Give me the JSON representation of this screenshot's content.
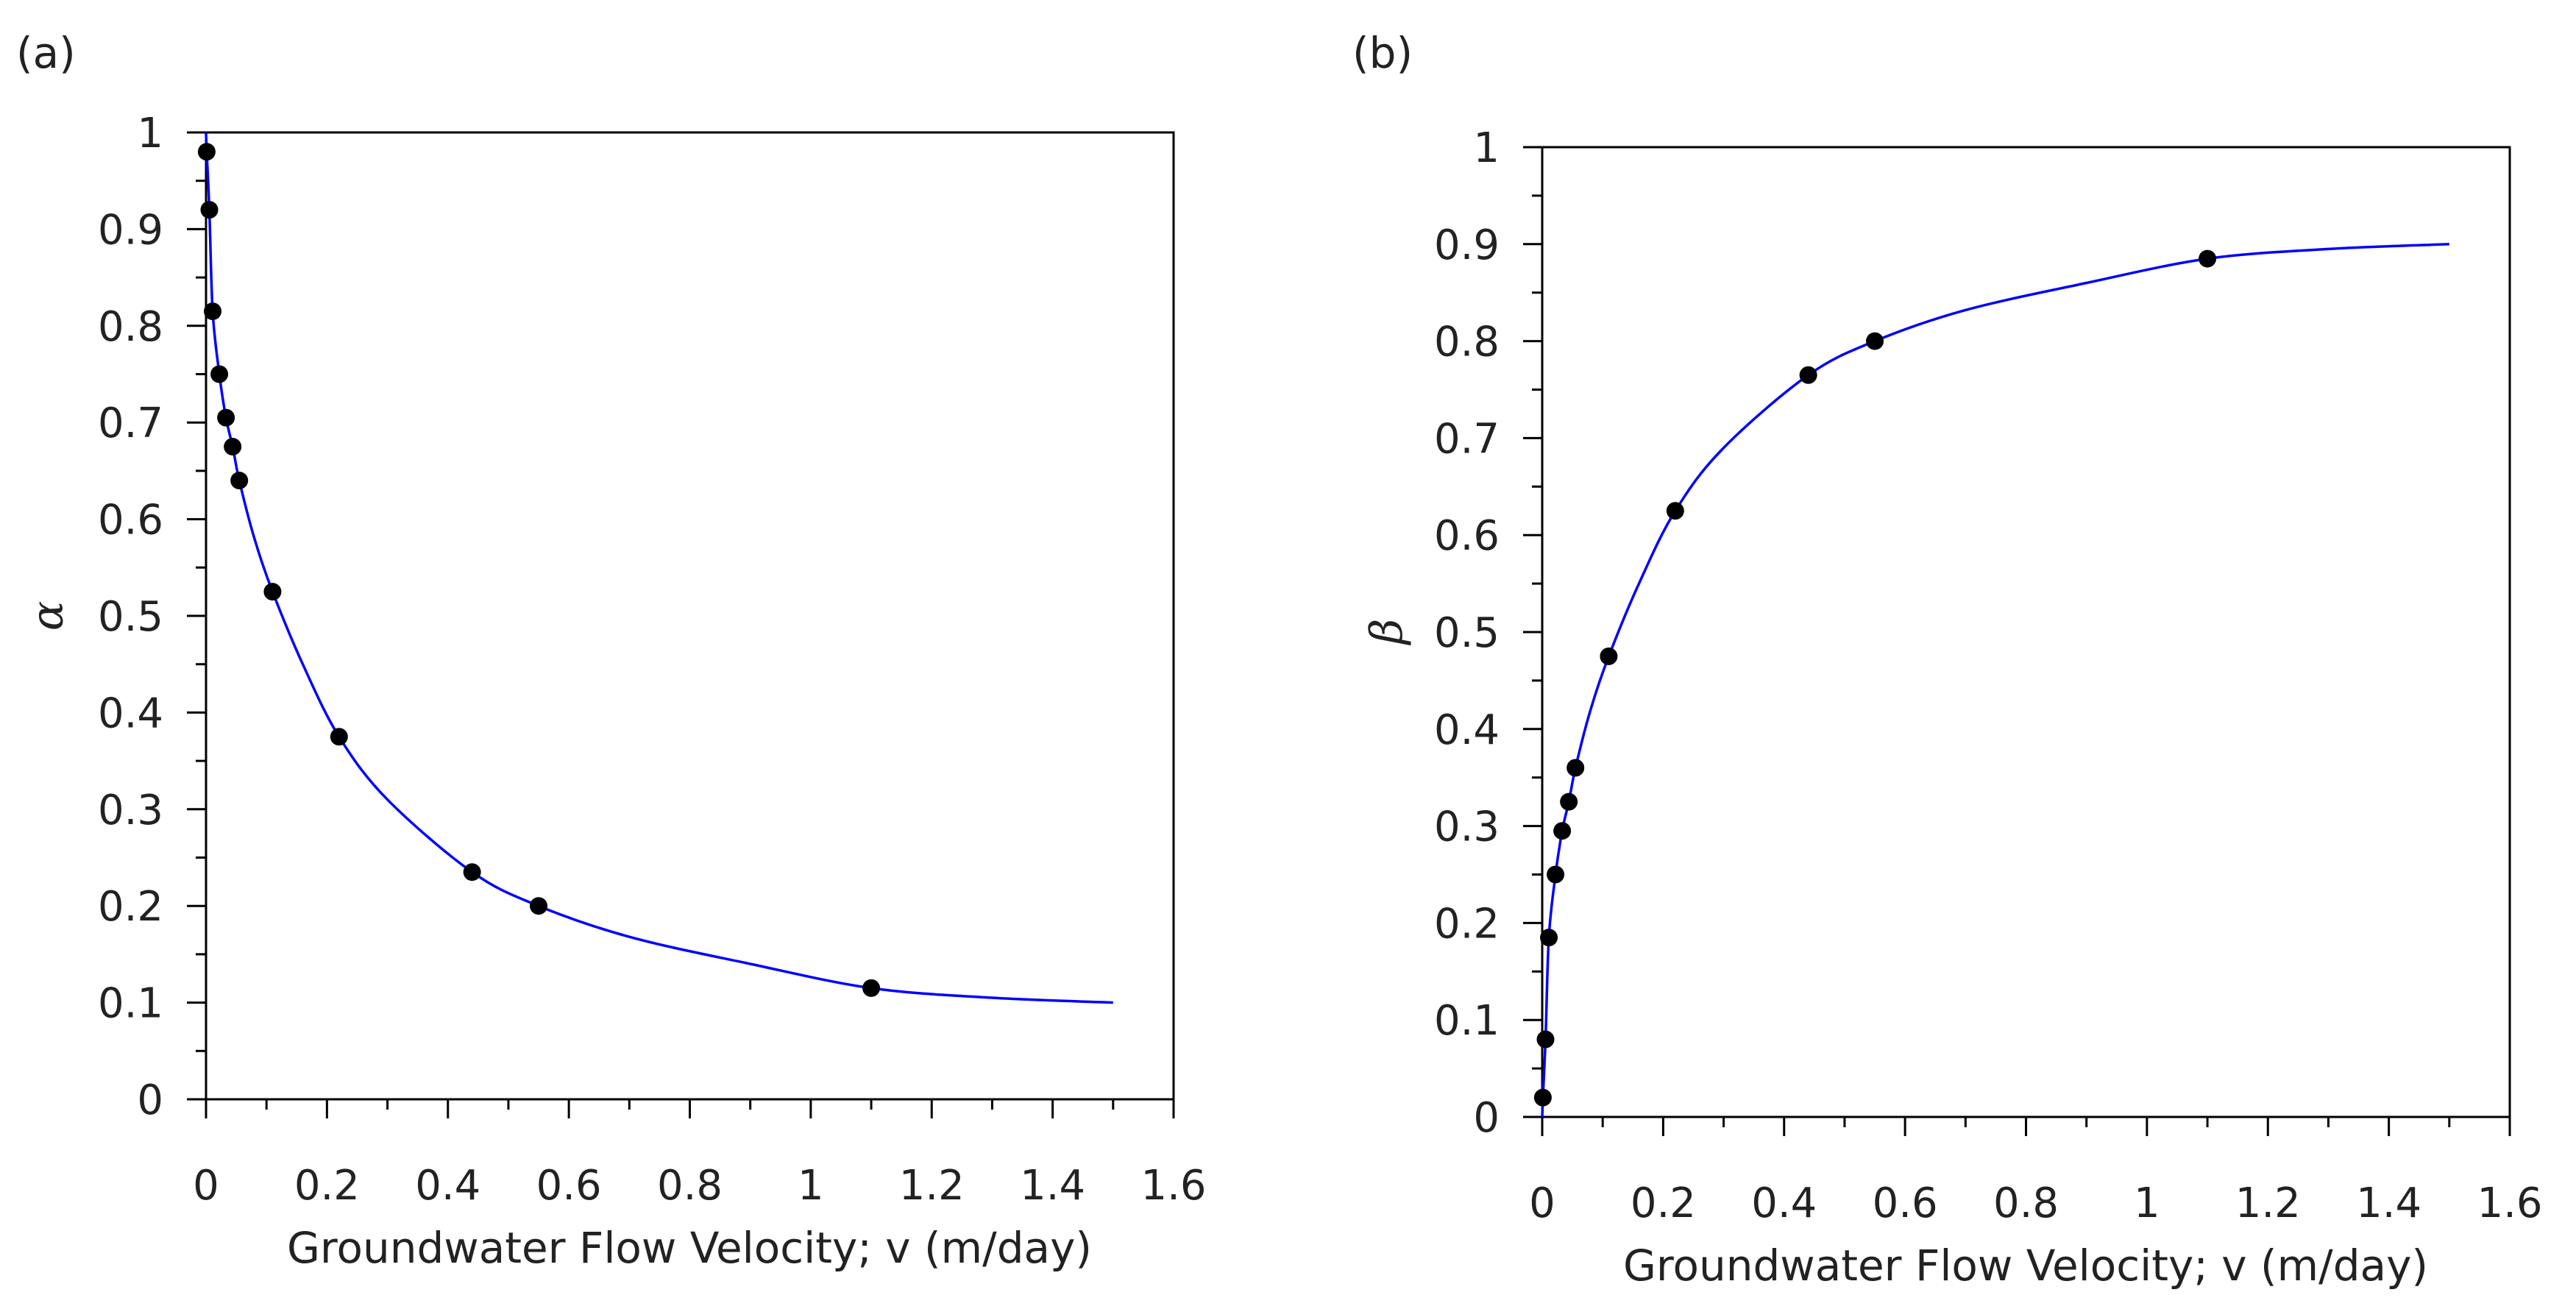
{
  "chart_data": [
    {
      "type": "scatter",
      "panel_label": "(a)",
      "xlabel": "Groundwater Flow Velocity; v (m/day)",
      "ylabel": "α",
      "xlim": [
        0,
        1.6
      ],
      "ylim": [
        0,
        1
      ],
      "x_ticks": [
        "0",
        "0.2",
        "0.4",
        "0.6",
        "0.8",
        "1",
        "1.2",
        "1.4",
        "1.6"
      ],
      "y_ticks": [
        "0",
        "0.1",
        "0.2",
        "0.3",
        "0.4",
        "0.5",
        "0.6",
        "0.7",
        "0.8",
        "0.9",
        "1"
      ],
      "grid": false,
      "series": [
        {
          "name": "data",
          "x": [
            0.0011,
            0.0055,
            0.011,
            0.022,
            0.033,
            0.044,
            0.055,
            0.11,
            0.22,
            0.44,
            0.55,
            1.1
          ],
          "y": [
            0.98,
            0.92,
            0.815,
            0.75,
            0.705,
            0.675,
            0.64,
            0.525,
            0.375,
            0.235,
            0.2,
            0.115
          ]
        },
        {
          "name": "fit",
          "x": [
            0,
            0.0011,
            0.0055,
            0.011,
            0.022,
            0.033,
            0.044,
            0.055,
            0.08,
            0.11,
            0.16,
            0.22,
            0.3,
            0.44,
            0.55,
            0.7,
            0.9,
            1.1,
            1.3,
            1.5
          ],
          "y": [
            1.0,
            0.98,
            0.92,
            0.815,
            0.75,
            0.705,
            0.675,
            0.64,
            0.58,
            0.525,
            0.45,
            0.375,
            0.31,
            0.235,
            0.2,
            0.168,
            0.14,
            0.115,
            0.105,
            0.1
          ]
        }
      ]
    },
    {
      "type": "scatter",
      "panel_label": "(b)",
      "xlabel": "Groundwater Flow Velocity; v (m/day)",
      "ylabel": "β",
      "xlim": [
        0,
        1.6
      ],
      "ylim": [
        0,
        1
      ],
      "x_ticks": [
        "0",
        "0.2",
        "0.4",
        "0.6",
        "0.8",
        "1",
        "1.2",
        "1.4",
        "1.6"
      ],
      "y_ticks": [
        "0",
        "0.1",
        "0.2",
        "0.3",
        "0.4",
        "0.5",
        "0.6",
        "0.7",
        "0.8",
        "0.9",
        "1"
      ],
      "grid": false,
      "series": [
        {
          "name": "data",
          "x": [
            0.0011,
            0.0055,
            0.011,
            0.022,
            0.033,
            0.044,
            0.055,
            0.11,
            0.22,
            0.44,
            0.55,
            1.1
          ],
          "y": [
            0.02,
            0.08,
            0.185,
            0.25,
            0.295,
            0.325,
            0.36,
            0.475,
            0.625,
            0.765,
            0.8,
            0.885
          ]
        },
        {
          "name": "fit",
          "x": [
            0,
            0.0011,
            0.0055,
            0.011,
            0.022,
            0.033,
            0.044,
            0.055,
            0.08,
            0.11,
            0.16,
            0.22,
            0.3,
            0.44,
            0.55,
            0.7,
            0.9,
            1.1,
            1.3,
            1.5
          ],
          "y": [
            0.0,
            0.02,
            0.08,
            0.185,
            0.25,
            0.295,
            0.325,
            0.36,
            0.42,
            0.475,
            0.55,
            0.625,
            0.69,
            0.765,
            0.8,
            0.832,
            0.86,
            0.885,
            0.895,
            0.9
          ]
        }
      ]
    }
  ]
}
